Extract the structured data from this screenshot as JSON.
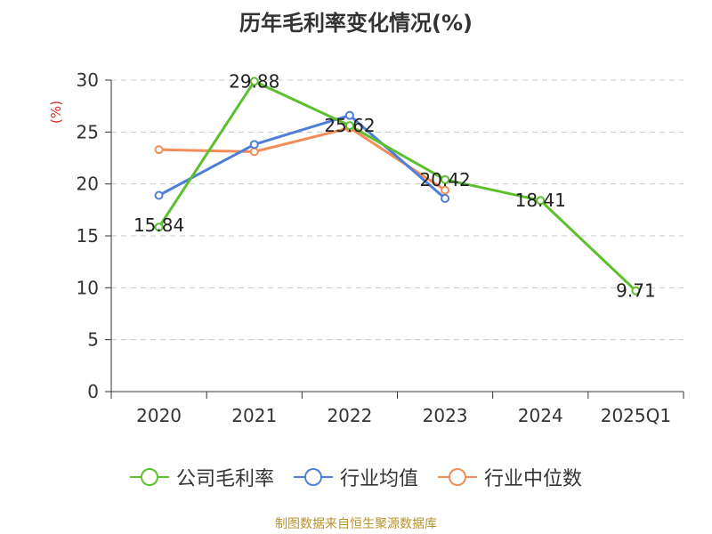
{
  "chart_data": {
    "type": "line",
    "title": "历年毛利率变化情况(%)",
    "ylabel": "(%)",
    "categories": [
      "2020",
      "2021",
      "2022",
      "2023",
      "2024",
      "2025Q1"
    ],
    "yticks": [
      "0",
      "5",
      "10",
      "15",
      "20",
      "25",
      "30"
    ],
    "ylim": [
      0,
      30
    ],
    "grid": true,
    "legend_position": "bottom",
    "series": [
      {
        "name": "公司毛利率",
        "color": "#5cc02e",
        "values": [
          15.84,
          29.88,
          25.62,
          20.42,
          18.41,
          9.71
        ],
        "labels": [
          "15.84",
          "29.88",
          "25.62",
          "20.42",
          "18.41",
          "9.71"
        ]
      },
      {
        "name": "行业均值",
        "color": "#4f7ed9",
        "values": [
          18.9,
          23.8,
          26.6,
          18.6,
          null,
          null
        ]
      },
      {
        "name": "行业中位数",
        "color": "#f28c58",
        "values": [
          23.3,
          23.1,
          25.4,
          19.4,
          null,
          null
        ]
      }
    ]
  },
  "source": "制图数据来自恒生聚源数据库"
}
